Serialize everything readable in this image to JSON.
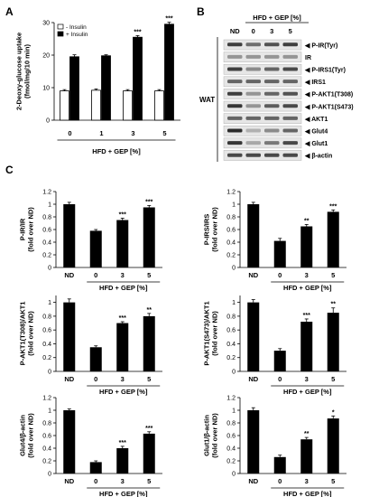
{
  "panel_labels": {
    "A": "A",
    "B": "B",
    "C": "C"
  },
  "chart_data": [
    {
      "id": "A",
      "type": "bar",
      "categories": [
        "0",
        "1",
        "3",
        "5"
      ],
      "series": [
        {
          "name": "- Insulin",
          "color": "#ffffff",
          "values": [
            9,
            9.2,
            9,
            9
          ],
          "errors": [
            0.4,
            0.4,
            0.4,
            0.4
          ]
        },
        {
          "name": "+ Insulin",
          "color": "#000000",
          "values": [
            19.5,
            19.8,
            25.5,
            29.5
          ],
          "errors": [
            0.6,
            0.3,
            0.5,
            0.6
          ]
        }
      ],
      "significance": [
        [
          "",
          "",
          "",
          ""
        ],
        [
          "",
          "",
          "***",
          "***"
        ]
      ],
      "ylabel": "2-Deoxy-glucose uptake\n(fmol/mg/10 min)",
      "xlabel": "HFD + GEP [%]",
      "ylim": [
        0,
        30
      ],
      "yticks": [
        "0",
        "10",
        "20",
        "30"
      ],
      "legend_position": "top-left"
    },
    {
      "id": "C1",
      "type": "bar",
      "categories": [
        "ND",
        "0",
        "3",
        "5"
      ],
      "values": [
        1.0,
        0.58,
        0.75,
        0.95
      ],
      "errors": [
        0.03,
        0.02,
        0.03,
        0.03
      ],
      "significance": [
        "",
        "",
        "***",
        "***"
      ],
      "ylabel": "P-IR/IR\n(fold over ND)",
      "xlabel": "HFD + GEP [%]",
      "ylim": [
        0,
        1.2
      ],
      "yticks": [
        "0",
        "0.2",
        "0.4",
        "0.6",
        "0.8",
        "1",
        "1.2"
      ]
    },
    {
      "id": "C2",
      "type": "bar",
      "categories": [
        "ND",
        "0",
        "3",
        "5"
      ],
      "values": [
        1.0,
        0.42,
        0.65,
        0.88
      ],
      "errors": [
        0.03,
        0.04,
        0.03,
        0.03
      ],
      "significance": [
        "",
        "",
        "**",
        "***"
      ],
      "ylabel": "P-IRS/IRS\n(fold over ND)",
      "xlabel": "HFD + GEP [%]",
      "ylim": [
        0,
        1.2
      ],
      "yticks": [
        "0",
        "0.2",
        "0.4",
        "0.6",
        "0.8",
        "1",
        "1.2"
      ]
    },
    {
      "id": "C3",
      "type": "bar",
      "categories": [
        "ND",
        "0",
        "3",
        "5"
      ],
      "values": [
        1.0,
        0.35,
        0.7,
        0.8
      ],
      "errors": [
        0.05,
        0.02,
        0.02,
        0.04
      ],
      "significance": [
        "",
        "",
        "***",
        "**"
      ],
      "ylabel": "P-AKT1(T308)/AKT1\n(fold over ND)",
      "xlabel": "HFD + GEP [%]",
      "ylim": [
        0,
        1.1
      ],
      "yticks": [
        "0",
        "0.2",
        "0.4",
        "0.6",
        "0.8",
        "1"
      ]
    },
    {
      "id": "C4",
      "type": "bar",
      "categories": [
        "ND",
        "0",
        "3",
        "5"
      ],
      "values": [
        1.0,
        0.3,
        0.72,
        0.85
      ],
      "errors": [
        0.04,
        0.03,
        0.04,
        0.07
      ],
      "significance": [
        "",
        "",
        "***",
        "**"
      ],
      "ylabel": "P-AKT1(S473)/AKT1\n(fold over ND)",
      "xlabel": "HFD + GEP [%]",
      "ylim": [
        0,
        1.1
      ],
      "yticks": [
        "0",
        "0.2",
        "0.4",
        "0.6",
        "0.8",
        "1"
      ]
    },
    {
      "id": "C5",
      "type": "bar",
      "categories": [
        "ND",
        "0",
        "3",
        "5"
      ],
      "values": [
        1.0,
        0.18,
        0.4,
        0.63
      ],
      "errors": [
        0.02,
        0.02,
        0.03,
        0.03
      ],
      "significance": [
        "",
        "",
        "***",
        "***"
      ],
      "ylabel": "Glut4/β-actin\n(fold over ND)",
      "xlabel": "HFD + GEP [%]",
      "ylim": [
        0,
        1.2
      ],
      "yticks": [
        "0",
        "0.2",
        "0.4",
        "0.6",
        "0.8",
        "1",
        "1.2"
      ]
    },
    {
      "id": "C6",
      "type": "bar",
      "categories": [
        "ND",
        "0",
        "3",
        "5"
      ],
      "values": [
        1.0,
        0.26,
        0.54,
        0.87
      ],
      "errors": [
        0.04,
        0.03,
        0.03,
        0.04
      ],
      "significance": [
        "",
        "",
        "**",
        "*"
      ],
      "ylabel": "Glut1/β-actin\n(fold over ND)",
      "xlabel": "HFD + GEP [%]",
      "ylim": [
        0,
        1.2
      ],
      "yticks": [
        "0",
        "0.2",
        "0.4",
        "0.6",
        "0.8",
        "1",
        "1.2"
      ]
    }
  ],
  "blot": {
    "header": "HFD + GEP [%]",
    "lanes": [
      "ND",
      "0",
      "3",
      "5"
    ],
    "tissue": "WAT",
    "rows": [
      {
        "label": "P-IR(Tyr)",
        "marker": "◀",
        "intensity": [
          0.8,
          0.55,
          0.7,
          0.8
        ]
      },
      {
        "label": "IR",
        "marker": "",
        "intensity": [
          0.35,
          0.35,
          0.35,
          0.35
        ]
      },
      {
        "label": "P-IRS1(Tyr)",
        "marker": "◀",
        "intensity": [
          0.8,
          0.4,
          0.6,
          0.75
        ]
      },
      {
        "label": "IRS1",
        "marker": "◀",
        "intensity": [
          0.6,
          0.6,
          0.6,
          0.6
        ]
      },
      {
        "label": "P-AKT1(T308)",
        "marker": "◀",
        "intensity": [
          0.8,
          0.35,
          0.6,
          0.7
        ]
      },
      {
        "label": "P-AKT1(S473)",
        "marker": "◀",
        "intensity": [
          0.85,
          0.35,
          0.65,
          0.75
        ]
      },
      {
        "label": "AKT1",
        "marker": "◀",
        "intensity": [
          0.6,
          0.6,
          0.6,
          0.6
        ]
      },
      {
        "label": "Glut4",
        "marker": "◀",
        "intensity": [
          0.9,
          0.2,
          0.4,
          0.6
        ]
      },
      {
        "label": "Glut1",
        "marker": "◀",
        "intensity": [
          0.85,
          0.25,
          0.5,
          0.75
        ]
      },
      {
        "label": "β-actin",
        "marker": "◀",
        "intensity": [
          0.75,
          0.75,
          0.75,
          0.75
        ]
      }
    ]
  }
}
